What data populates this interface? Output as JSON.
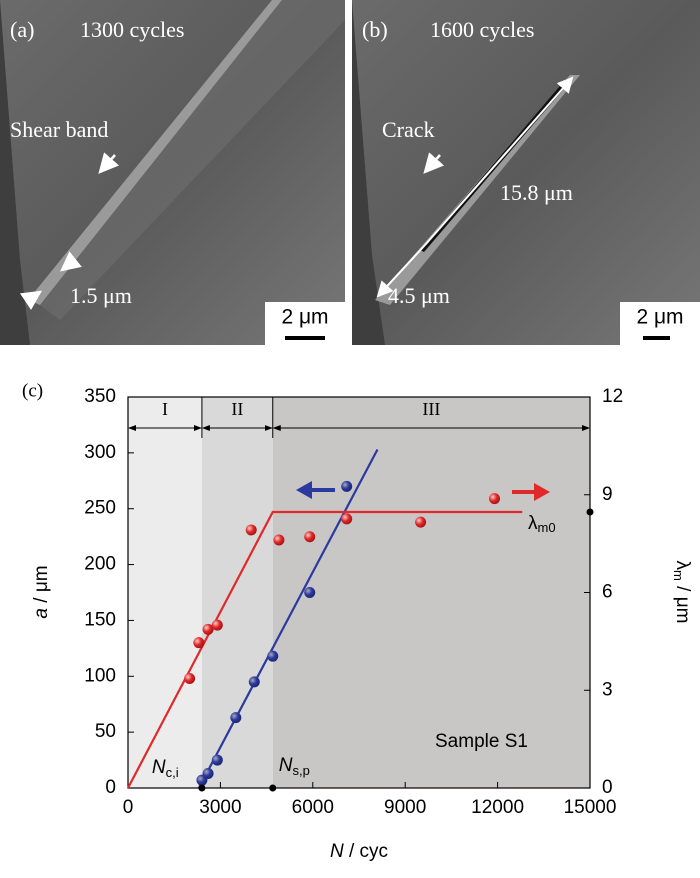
{
  "panels": [
    {
      "label": "(a)",
      "caption": "1300 cycles",
      "annotations": [
        "Shear band",
        "1.5 μm"
      ],
      "scale_bar": "2 μm"
    },
    {
      "label": "(b)",
      "caption": "1600 cycles",
      "annotations": [
        "Crack",
        "15.8 μm",
        "4.5 μm"
      ],
      "scale_bar": "2 μm"
    }
  ],
  "chart_data": {
    "type": "scatter",
    "panel_label": "(c)",
    "x_label": [
      "N",
      " / cyc"
    ],
    "y_label": [
      "a",
      " / μm"
    ],
    "y2_label": [
      "λ",
      "m",
      " / μm"
    ],
    "xlim": [
      0,
      15000
    ],
    "xticks": [
      0,
      3000,
      6000,
      9000,
      12000,
      15000
    ],
    "ylim": [
      0,
      350
    ],
    "yticks": [
      0,
      50,
      100,
      150,
      200,
      250,
      300,
      350
    ],
    "y2lim": [
      0,
      12
    ],
    "y2ticks": [
      0,
      3,
      6,
      9,
      12
    ],
    "regions": [
      {
        "label": "I",
        "xlim": [
          0,
          2400
        ],
        "color": "#ececec"
      },
      {
        "label": "II",
        "xlim": [
          2400,
          4700
        ],
        "color": "#d9d9d9"
      },
      {
        "label": "III",
        "xlim": [
          4700,
          15000
        ],
        "color": "#c9c6c6"
      }
    ],
    "series": [
      {
        "color": "#2b3a9e",
        "x": [
          2400,
          2600,
          2900,
          3500,
          4100,
          4700,
          5900,
          7100
        ],
        "values": [
          7,
          13,
          25,
          63,
          95,
          118,
          175,
          270
        ]
      },
      {
        "color": "#e02a2a",
        "axis": "y2",
        "x": [
          2000,
          2300,
          2600,
          2900,
          4000,
          4900,
          5900,
          7100,
          9500,
          11900
        ],
        "values": [
          3.36,
          4.46,
          4.87,
          5.0,
          7.92,
          7.61,
          7.71,
          8.26,
          8.16,
          8.88
        ]
      }
    ],
    "fits": [
      {
        "color": "#2b3a9e",
        "x": [
          2300,
          8100
        ],
        "values": [
          0,
          303
        ]
      },
      {
        "color": "#e02a2a",
        "axis": "y2",
        "x": [
          0,
          4700,
          12800
        ],
        "values": [
          0,
          8.47,
          8.47
        ]
      }
    ],
    "annotations": [
      {
        "text": "N",
        "sub": "c,i",
        "x": 2400
      },
      {
        "text": "N",
        "sub": "s,p",
        "x": 4700
      },
      {
        "text": "λ",
        "sub": "m0",
        "y2": 8.47
      },
      {
        "text": "Sample S1"
      }
    ]
  }
}
